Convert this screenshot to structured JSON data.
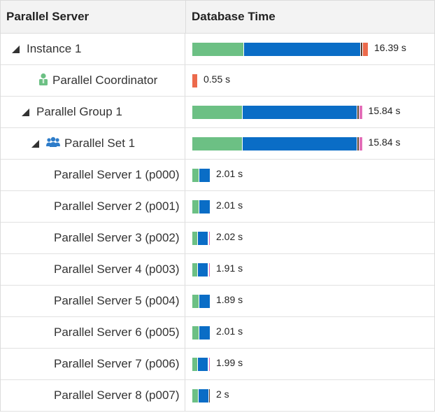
{
  "header": {
    "col1": "Parallel Server",
    "col2": "Database Time"
  },
  "colors": {
    "cpu": "#6cc084",
    "io": "#0a6dc6",
    "concurrency": "#5a3b2a",
    "other": "#ec6a4c",
    "cluster": "#e36db8"
  },
  "max_seconds": 16.39,
  "rows": [
    {
      "label": "Instance 1",
      "value": "16.39 s",
      "seconds": 16.39,
      "expander": true,
      "icon": "none",
      "segments": [
        {
          "color": "cpu",
          "pct": 0.295
        },
        {
          "color": "io",
          "pct": 0.672
        },
        {
          "color": "concurrency",
          "pct": 0.008
        },
        {
          "color": "other",
          "pct": 0.028
        },
        {
          "color": "cluster",
          "pct": 0.0
        }
      ]
    },
    {
      "label": "Parallel Coordinator",
      "value": "0.55 s",
      "seconds": 0.55,
      "expander": false,
      "icon": "person-icon",
      "segments": [
        {
          "color": "other",
          "pct": 1.0
        }
      ]
    },
    {
      "label": "Parallel Group 1",
      "value": "15.84 s",
      "seconds": 15.84,
      "expander": true,
      "icon": "none",
      "segments": [
        {
          "color": "cpu",
          "pct": 0.295
        },
        {
          "color": "io",
          "pct": 0.68
        },
        {
          "color": "concurrency",
          "pct": 0.01
        },
        {
          "color": "other",
          "pct": 0.0
        },
        {
          "color": "cluster",
          "pct": 0.015
        }
      ]
    },
    {
      "label": "Parallel Set 1",
      "value": "15.84 s",
      "seconds": 15.84,
      "expander": true,
      "icon": "group-icon",
      "segments": [
        {
          "color": "cpu",
          "pct": 0.295
        },
        {
          "color": "io",
          "pct": 0.68
        },
        {
          "color": "concurrency",
          "pct": 0.01
        },
        {
          "color": "other",
          "pct": 0.0
        },
        {
          "color": "cluster",
          "pct": 0.015
        }
      ]
    },
    {
      "label": "Parallel Server 1 (p000)",
      "value": "2.01 s",
      "seconds": 2.01,
      "expander": false,
      "icon": "none",
      "segments": [
        {
          "color": "cpu",
          "pct": 0.36
        },
        {
          "color": "io",
          "pct": 0.64
        }
      ]
    },
    {
      "label": "Parallel Server 2 (p001)",
      "value": "2.01 s",
      "seconds": 2.01,
      "expander": false,
      "icon": "none",
      "segments": [
        {
          "color": "cpu",
          "pct": 0.36
        },
        {
          "color": "io",
          "pct": 0.64
        }
      ]
    },
    {
      "label": "Parallel Server 3 (p002)",
      "value": "2.02 s",
      "seconds": 2.02,
      "expander": false,
      "icon": "none",
      "segments": [
        {
          "color": "cpu",
          "pct": 0.34
        },
        {
          "color": "io",
          "pct": 0.6
        },
        {
          "color": "concurrency",
          "pct": 0.02
        },
        {
          "color": "cluster",
          "pct": 0.04
        }
      ]
    },
    {
      "label": "Parallel Server 4 (p003)",
      "value": "1.91 s",
      "seconds": 1.91,
      "expander": false,
      "icon": "none",
      "segments": [
        {
          "color": "cpu",
          "pct": 0.34
        },
        {
          "color": "io",
          "pct": 0.6
        },
        {
          "color": "concurrency",
          "pct": 0.02
        },
        {
          "color": "cluster",
          "pct": 0.04
        }
      ]
    },
    {
      "label": "Parallel Server 5 (p004)",
      "value": "1.89 s",
      "seconds": 1.89,
      "expander": false,
      "icon": "none",
      "segments": [
        {
          "color": "cpu",
          "pct": 0.36
        },
        {
          "color": "io",
          "pct": 0.64
        }
      ]
    },
    {
      "label": "Parallel Server 6 (p005)",
      "value": "2.01 s",
      "seconds": 2.01,
      "expander": false,
      "icon": "none",
      "segments": [
        {
          "color": "cpu",
          "pct": 0.36
        },
        {
          "color": "io",
          "pct": 0.64
        }
      ]
    },
    {
      "label": "Parallel Server 7 (p006)",
      "value": "1.99 s",
      "seconds": 1.99,
      "expander": false,
      "icon": "none",
      "segments": [
        {
          "color": "cpu",
          "pct": 0.34
        },
        {
          "color": "io",
          "pct": 0.6
        },
        {
          "color": "concurrency",
          "pct": 0.02
        },
        {
          "color": "cluster",
          "pct": 0.04
        }
      ]
    },
    {
      "label": "Parallel Server 8 (p007)",
      "value": "2 s",
      "seconds": 2.0,
      "expander": false,
      "icon": "none",
      "segments": [
        {
          "color": "cpu",
          "pct": 0.34
        },
        {
          "color": "io",
          "pct": 0.62
        },
        {
          "color": "concurrency",
          "pct": 0.04
        }
      ]
    }
  ]
}
